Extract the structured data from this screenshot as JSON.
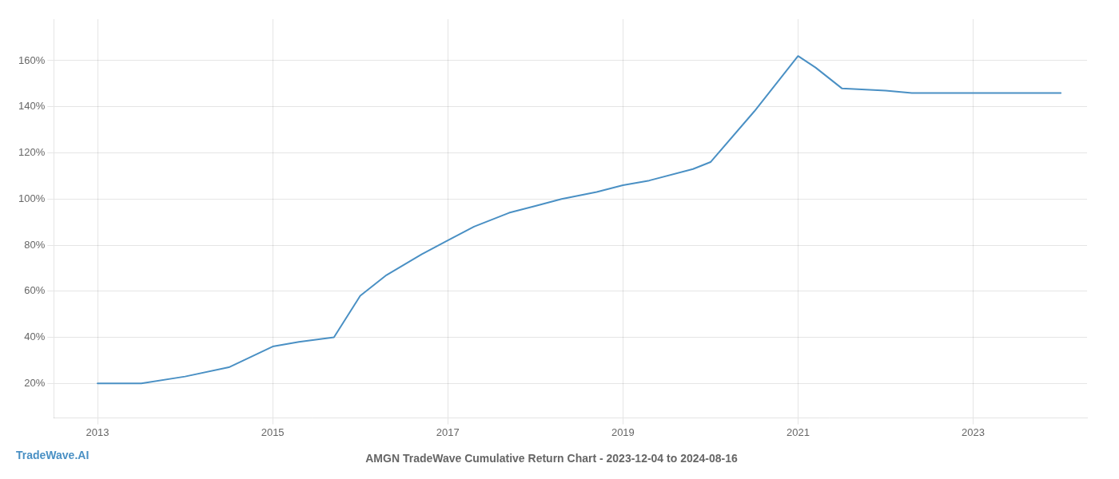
{
  "chart_data": {
    "type": "line",
    "title": "AMGN TradeWave Cumulative Return Chart - 2023-12-04 to 2024-08-16",
    "annotations": [
      {
        "text": "TradeWave.AI",
        "color": "#4a90c4"
      }
    ],
    "x": [
      2013.0,
      2013.5,
      2014.0,
      2014.5,
      2015.0,
      2015.3,
      2015.7,
      2016.0,
      2016.3,
      2016.7,
      2017.0,
      2017.3,
      2017.7,
      2018.0,
      2018.3,
      2018.7,
      2019.0,
      2019.3,
      2019.8,
      2020.0,
      2020.5,
      2021.0,
      2021.2,
      2021.5,
      2022.0,
      2022.3,
      2022.7,
      2023.0,
      2023.5,
      2024.0
    ],
    "values": [
      20,
      20,
      23,
      27,
      36,
      38,
      40,
      58,
      67,
      76,
      82,
      88,
      94,
      97,
      100,
      103,
      106,
      108,
      113,
      116,
      138,
      162,
      157,
      148,
      147,
      146,
      146,
      146,
      146,
      146
    ],
    "color": "#4a90c4",
    "xlim": [
      2012.5,
      2024.3
    ],
    "ylim": [
      5,
      178
    ],
    "xticks": [
      2013,
      2015,
      2017,
      2019,
      2021,
      2023
    ],
    "yticks": [
      {
        "value": 20,
        "label": "20%"
      },
      {
        "value": 40,
        "label": "40%"
      },
      {
        "value": 60,
        "label": "60%"
      },
      {
        "value": 80,
        "label": "80%"
      },
      {
        "value": 100,
        "label": "100%"
      },
      {
        "value": 120,
        "label": "120%"
      },
      {
        "value": 140,
        "label": "140%"
      },
      {
        "value": 160,
        "label": "160%"
      }
    ],
    "grid": true
  }
}
